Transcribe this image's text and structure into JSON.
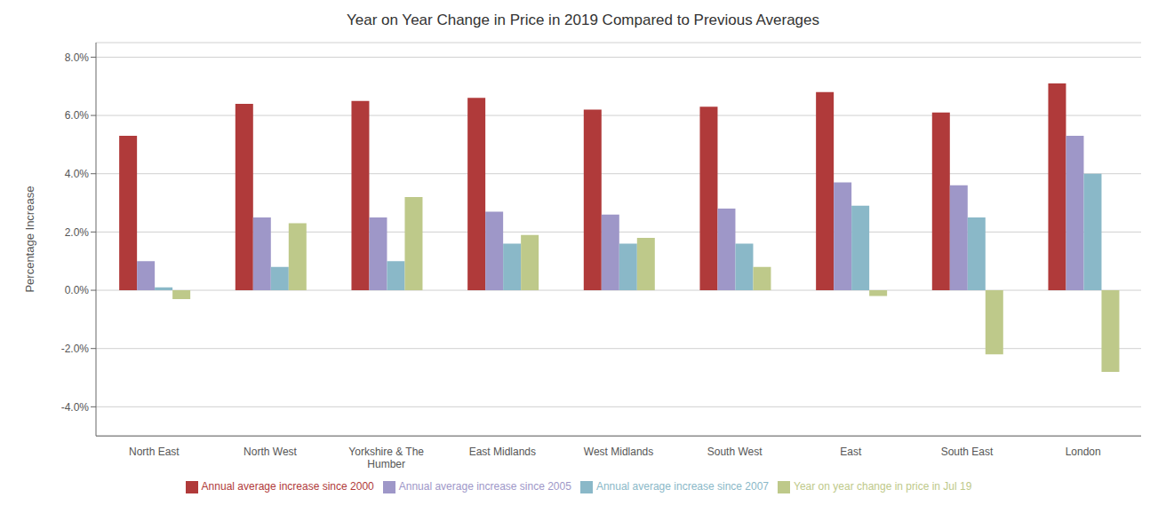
{
  "chart_data": {
    "type": "bar",
    "title": "Year on Year Change in Price in 2019 Compared to Previous Averages",
    "y_label": "Percentage Increase",
    "categories": [
      "North East",
      "North West",
      "Yorkshire & The\nHumber",
      "East Midlands",
      "West Midlands",
      "South West",
      "East",
      "South East",
      "London"
    ],
    "series": [
      {
        "name": "Annual average increase since 2000",
        "color": "#b03a3a",
        "values": [
          0.053,
          0.064,
          0.065,
          0.066,
          0.062,
          0.063,
          0.068,
          0.061,
          0.071
        ]
      },
      {
        "name": "Annual average increase since 2005",
        "color": "#9e97c8",
        "values": [
          0.01,
          0.025,
          0.025,
          0.027,
          0.026,
          0.028,
          0.037,
          0.036,
          0.053
        ]
      },
      {
        "name": "Annual average increase since 2007",
        "color": "#8ab8c8",
        "values": [
          0.001,
          0.008,
          0.01,
          0.016,
          0.016,
          0.016,
          0.029,
          0.025,
          0.04
        ]
      },
      {
        "name": "Year on year change in price in Jul 19",
        "color": "#bec98a",
        "values": [
          -0.003,
          0.023,
          0.032,
          0.019,
          0.018,
          0.008,
          -0.002,
          -0.022,
          -0.028
        ]
      }
    ],
    "ylim": [
      -0.05,
      0.085
    ],
    "yticks": [
      {
        "value": -0.04,
        "label": "-4.0%"
      },
      {
        "value": -0.02,
        "label": "-2.0%"
      },
      {
        "value": 0.0,
        "label": "0.0%"
      },
      {
        "value": 0.02,
        "label": "2.0%"
      },
      {
        "value": 0.04,
        "label": "4.0%"
      },
      {
        "value": 0.06,
        "label": "6.0%"
      },
      {
        "value": 0.08,
        "label": "8.0%"
      }
    ],
    "grid": true,
    "legend": "bottom"
  }
}
